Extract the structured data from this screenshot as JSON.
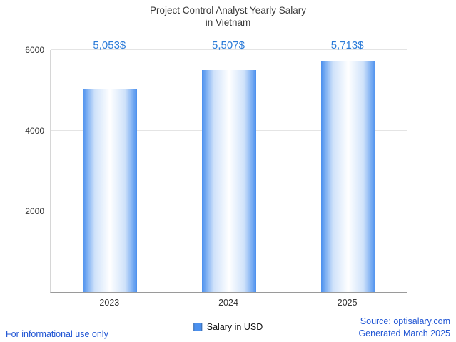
{
  "title": {
    "line1": "Project Control Analyst Yearly Salary",
    "line2": "in Vietnam"
  },
  "chart_data": {
    "type": "bar",
    "title": "Project Control Analyst Yearly Salary in Vietnam",
    "categories": [
      "2023",
      "2024",
      "2025"
    ],
    "values": [
      5053,
      5507,
      5713
    ],
    "value_labels": [
      "5,053$",
      "5,507$",
      "5,713$"
    ],
    "xlabel": "",
    "ylabel": "",
    "ylim": [
      0,
      6000
    ],
    "yticks": [
      2000,
      4000,
      6000
    ],
    "grid": true,
    "legend": [
      "Salary in USD"
    ],
    "legend_position": "bottom"
  },
  "footer": {
    "disclaimer": "For informational use only",
    "source": "Source: optisalary.com",
    "generated": "Generated March 2025"
  },
  "colors": {
    "accent": "#2b7bd8",
    "link": "#2156d4",
    "bar_edge": "#4b90ee",
    "text": "#3a3a3a"
  }
}
